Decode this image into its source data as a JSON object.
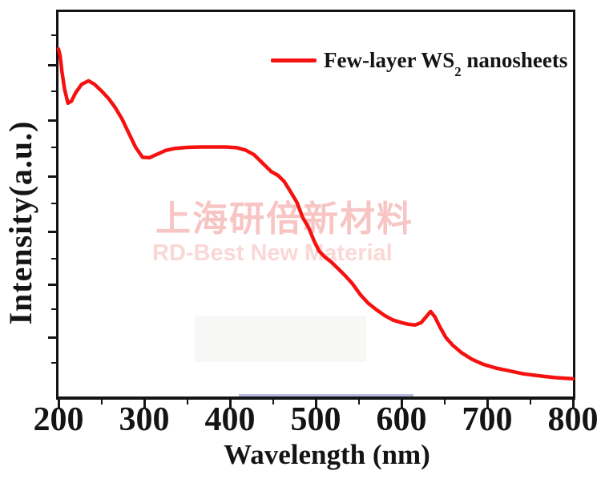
{
  "figure": {
    "legend": {
      "pre": "Few-layer WS",
      "sub": "2",
      "post": " nanosheets"
    },
    "axes": {
      "xlabel": "Wavelength (nm)",
      "ylabel": "Intensity(a.u.)"
    },
    "watermark": {
      "cn": "上海研倍新材料",
      "en": "RD-Best New Material"
    },
    "colors": {
      "curve": "#f51110",
      "axis": "#141414",
      "watermark_cn": "#f7c5c3",
      "watermark_en": "#fad8d6"
    }
  },
  "chart_data": {
    "type": "line",
    "title": "",
    "xlabel": "Wavelength (nm)",
    "ylabel": "Intensity(a.u.)",
    "xlim": [
      200,
      800
    ],
    "ylim": [
      0,
      1
    ],
    "y_axis_units": "a.u. (unlabeled ticks)",
    "grid": false,
    "legend_position": "top-right-inside",
    "x_major_ticks": [
      200,
      300,
      400,
      500,
      600,
      700,
      800
    ],
    "x_minor_ticks": [
      250,
      350,
      450,
      550,
      650,
      750
    ],
    "y_tick_positions_frac": {
      "major": [
        0.138,
        0.283,
        0.429,
        0.571,
        0.71,
        0.846
      ],
      "minor": [
        0.06,
        0.206,
        0.352,
        0.498,
        0.642,
        0.773,
        0.913
      ]
    },
    "series": [
      {
        "name": "Few-layer WS2 nanosheets",
        "color": "#f51110",
        "x": [
          200,
          202,
          204,
          207,
          211,
          215,
          220,
          227,
          235,
          242,
          250,
          258,
          266,
          274,
          282,
          290,
          298,
          306,
          315,
          325,
          335,
          350,
          365,
          380,
          395,
          408,
          418,
          428,
          438,
          448,
          456,
          463,
          470,
          478,
          485,
          492,
          498,
          504,
          511,
          518,
          526,
          534,
          543,
          552,
          561,
          570,
          580,
          590,
          600,
          608,
          616,
          623,
          629,
          634,
          639,
          645,
          652,
          660,
          670,
          682,
          695,
          710,
          725,
          742,
          760,
          780,
          800
        ],
        "y": [
          0.904,
          0.885,
          0.845,
          0.8,
          0.763,
          0.768,
          0.79,
          0.812,
          0.821,
          0.812,
          0.795,
          0.776,
          0.752,
          0.722,
          0.685,
          0.648,
          0.622,
          0.621,
          0.63,
          0.64,
          0.645,
          0.648,
          0.649,
          0.649,
          0.649,
          0.647,
          0.641,
          0.629,
          0.607,
          0.585,
          0.575,
          0.56,
          0.535,
          0.505,
          0.465,
          0.438,
          0.405,
          0.378,
          0.362,
          0.35,
          0.333,
          0.315,
          0.293,
          0.265,
          0.243,
          0.227,
          0.211,
          0.199,
          0.192,
          0.188,
          0.186,
          0.192,
          0.208,
          0.221,
          0.207,
          0.18,
          0.153,
          0.133,
          0.114,
          0.097,
          0.084,
          0.074,
          0.067,
          0.059,
          0.054,
          0.049,
          0.046
        ]
      }
    ]
  }
}
